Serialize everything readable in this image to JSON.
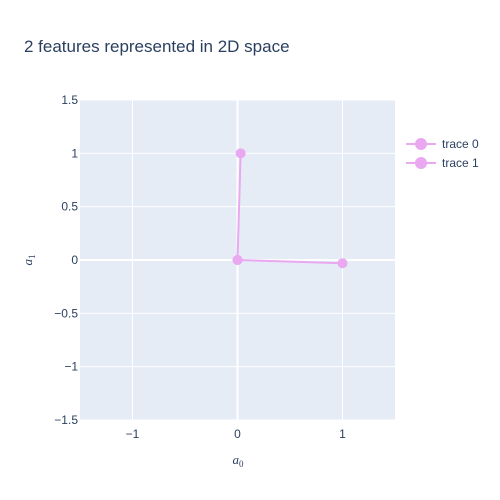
{
  "chart_data": {
    "type": "line",
    "title": "2 features represented in 2D space",
    "xlabel": {
      "base": "a",
      "sub": "0"
    },
    "ylabel": {
      "base": "a",
      "sub": "1"
    },
    "xlim": [
      -1.5,
      1.5
    ],
    "ylim": [
      -1.5,
      1.5
    ],
    "xticks": [
      {
        "value": -1,
        "label": "−1"
      },
      {
        "value": 0,
        "label": "0"
      },
      {
        "value": 1,
        "label": "1"
      }
    ],
    "yticks": [
      {
        "value": 1.5,
        "label": "1.5"
      },
      {
        "value": 1,
        "label": "1"
      },
      {
        "value": 0.5,
        "label": "0.5"
      },
      {
        "value": 0,
        "label": "0"
      },
      {
        "value": -0.5,
        "label": "−0.5"
      },
      {
        "value": -1,
        "label": "−1"
      },
      {
        "value": -1.5,
        "label": "−1.5"
      }
    ],
    "grid": true,
    "legend_position": "top-right",
    "plot_bgcolor": "#e5ecf6",
    "grid_color": "#ffffff",
    "series": [
      {
        "name": "trace 0",
        "color": "#e9a8f0",
        "x": [
          0,
          1.0
        ],
        "y": [
          0,
          -0.03
        ]
      },
      {
        "name": "trace 1",
        "color": "#e9a8f0",
        "x": [
          0,
          0.03
        ],
        "y": [
          0,
          1.0
        ]
      }
    ]
  }
}
